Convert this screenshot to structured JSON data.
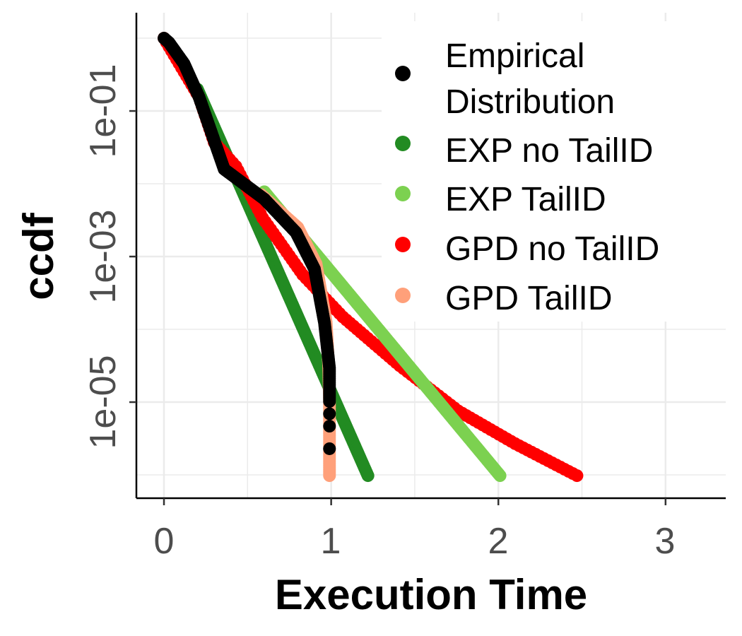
{
  "chart_data": {
    "type": "scatter",
    "xlabel": "Execution Time",
    "ylabel": "ccdf",
    "x_ticks": [
      "0",
      "1",
      "2",
      "3"
    ],
    "x_tick_values": [
      0,
      1,
      2,
      3
    ],
    "y_ticks": [
      "1e-05",
      "1e-03",
      "1e-01"
    ],
    "y_tick_values_log10": [
      -5,
      -3,
      -1
    ],
    "y_scale": "log10",
    "xlim": [
      -0.165,
      3.36
    ],
    "ylim_log10": [
      -6.32,
      0.35
    ],
    "grid": true,
    "legend_position": "top-right",
    "series": [
      {
        "name": "EXP no TailID",
        "color": "#228B22",
        "points_log10": [
          [
            0.2,
            -0.7
          ],
          [
            1.22,
            -6.01
          ]
        ]
      },
      {
        "name": "GPD no TailID",
        "color": "#FF0000",
        "points_log10": [
          [
            0,
            0
          ],
          [
            0.21,
            -0.81
          ],
          [
            0.3,
            -1.43
          ],
          [
            0.43,
            -1.76
          ],
          [
            0.59,
            -2.47
          ],
          [
            0.83,
            -3.25
          ],
          [
            1.07,
            -3.83
          ],
          [
            1.41,
            -4.5
          ],
          [
            1.76,
            -5.12
          ],
          [
            2.1,
            -5.57
          ],
          [
            2.47,
            -6.01
          ]
        ]
      },
      {
        "name": "EXP TailID",
        "color": "#7CD150",
        "points_log10": [
          [
            0.6,
            -2.11
          ],
          [
            2.01,
            -6.01
          ]
        ]
      },
      {
        "name": "GPD TailID",
        "color": "#FFA07A",
        "points_log10": [
          [
            0.58,
            -2.15
          ],
          [
            0.8,
            -2.6
          ],
          [
            0.91,
            -3.1
          ],
          [
            0.97,
            -3.9
          ],
          [
            0.985,
            -4.5
          ],
          [
            0.99,
            -5.0
          ],
          [
            0.99,
            -6.01
          ]
        ]
      },
      {
        "name": "Empirical Distribution",
        "color": "#000000",
        "points_log10": [
          [
            0,
            0
          ],
          [
            0.03,
            -0.06
          ],
          [
            0.12,
            -0.35
          ],
          [
            0.21,
            -0.81
          ],
          [
            0.36,
            -1.8
          ],
          [
            0.6,
            -2.21
          ],
          [
            0.79,
            -2.67
          ],
          [
            0.9,
            -3.17
          ],
          [
            0.96,
            -3.91
          ],
          [
            0.99,
            -4.53
          ],
          [
            0.99,
            -4.99
          ]
        ],
        "extra_points_log10": [
          [
            0.99,
            -5.16
          ],
          [
            0.99,
            -5.33
          ],
          [
            0.99,
            -5.64
          ]
        ]
      }
    ],
    "legend": [
      {
        "label_lines": [
          "Empirical",
          "Distribution"
        ],
        "color": "#000000"
      },
      {
        "label_lines": [
          "EXP no TailID"
        ],
        "color": "#228B22"
      },
      {
        "label_lines": [
          "EXP TailID"
        ],
        "color": "#7CD150"
      },
      {
        "label_lines": [
          "GPD no TailID"
        ],
        "color": "#FF0000"
      },
      {
        "label_lines": [
          "GPD TailID"
        ],
        "color": "#FFA07A"
      }
    ]
  }
}
